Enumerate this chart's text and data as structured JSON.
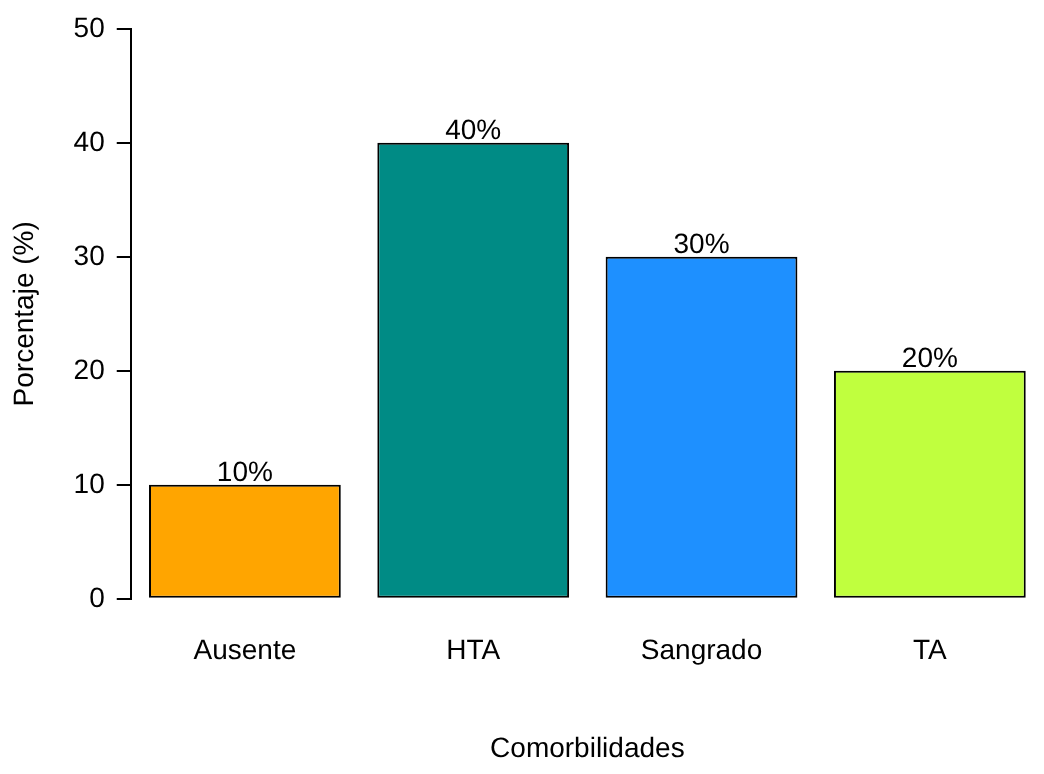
{
  "chart_data": {
    "type": "bar",
    "xlabel": "Comorbilidades",
    "ylabel": "Porcentaje (%)",
    "categories": [
      "Ausente",
      "HTA",
      "Sangrado",
      "TA"
    ],
    "values": [
      10,
      40,
      30,
      20
    ],
    "colors": [
      "#ffa500",
      "#008b85",
      "#1e90ff",
      "#c0ff3e"
    ],
    "value_labels": [
      "10%",
      "40%",
      "30%",
      "20%"
    ],
    "ylim": [
      0,
      50
    ],
    "yticks": [
      0,
      10,
      20,
      30,
      40,
      50
    ],
    "grid": false,
    "legend": false
  }
}
